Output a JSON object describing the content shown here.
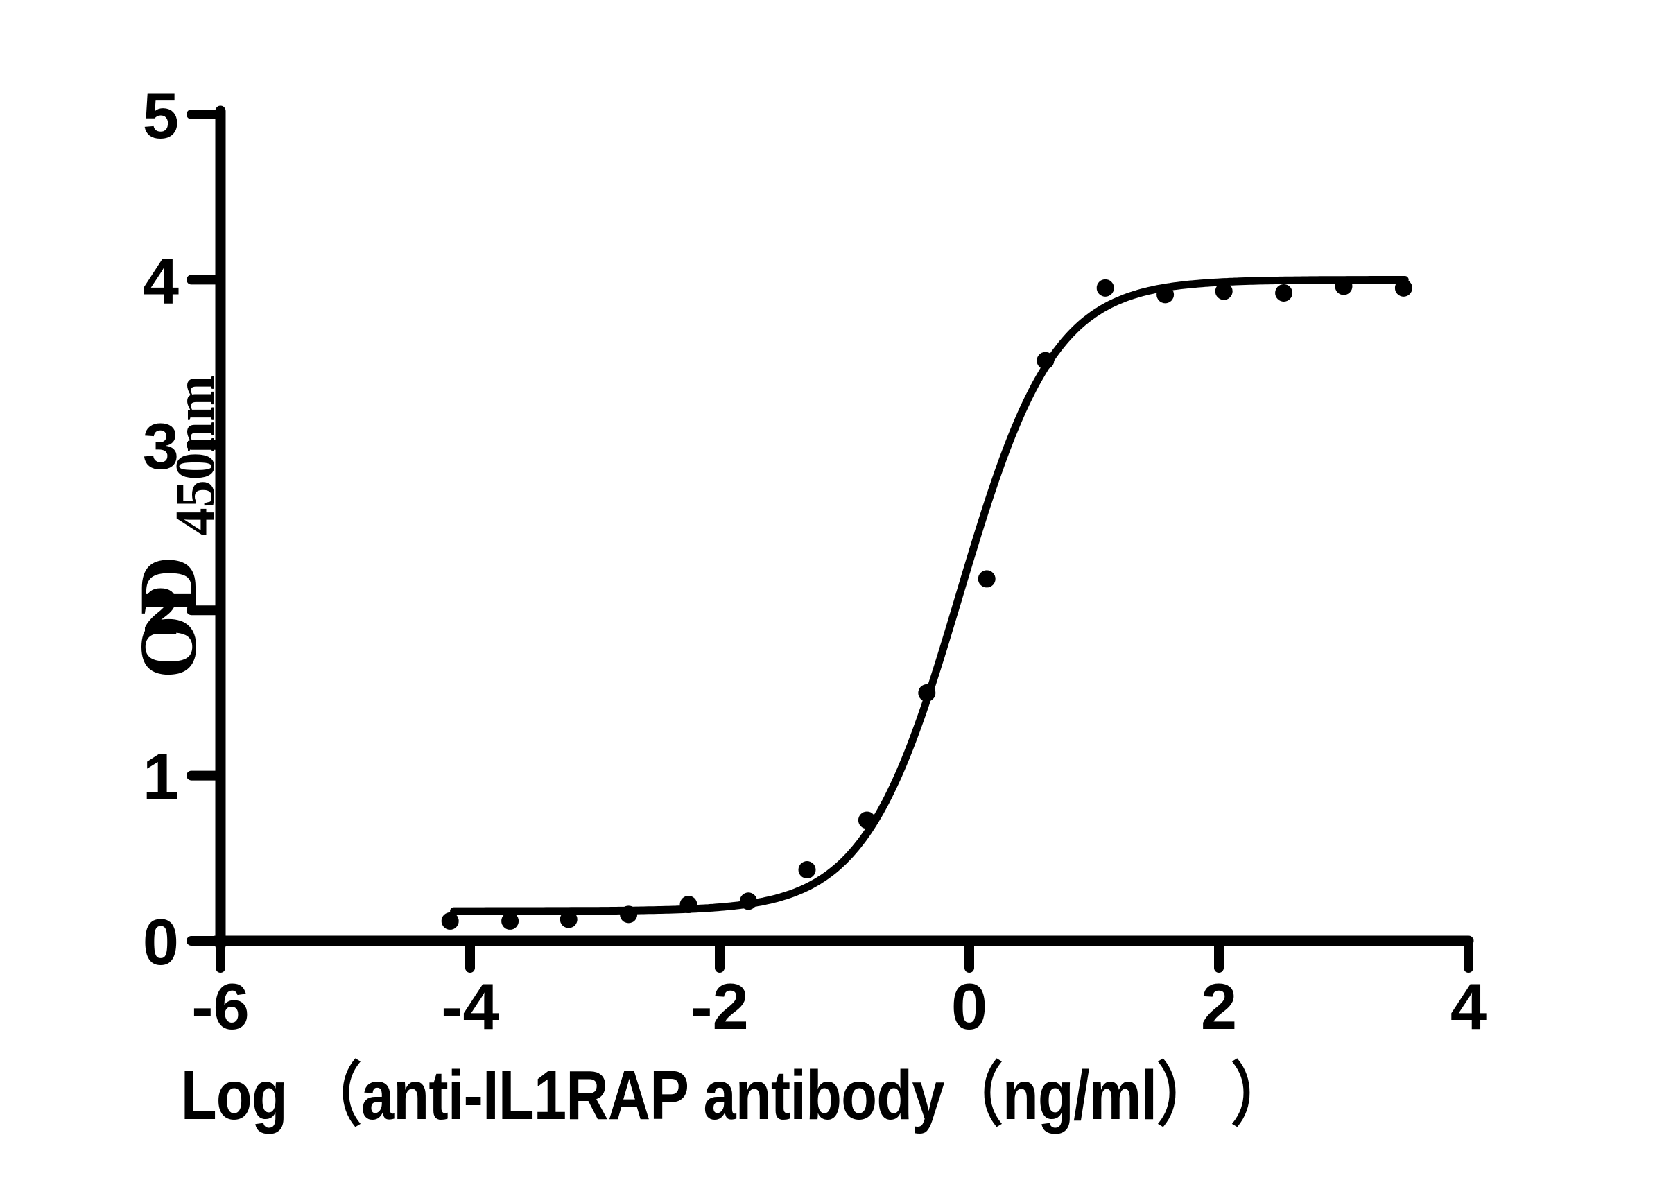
{
  "figure": {
    "background_color": "#ffffff",
    "ink_color": "#000000",
    "description": "ELISA sigmoidal binding curve, black scatter points with fitted four-parameter logistic curve on white background"
  },
  "chart_data": {
    "type": "scatter",
    "title": "",
    "xlabel": "Log （anti-IL1RAP antibody（ng/ml） ）",
    "ylabel": "OD450nm",
    "ylabel_main": "OD",
    "ylabel_sub": "450nm",
    "xlim": [
      -6,
      4
    ],
    "ylim": [
      0,
      5
    ],
    "x_ticks": [
      -6,
      -4,
      -2,
      0,
      2,
      4
    ],
    "x_tick_labels": [
      "-6",
      "-4",
      "-2",
      "0",
      "2",
      "4"
    ],
    "y_ticks": [
      0,
      1,
      2,
      3,
      4,
      5
    ],
    "y_tick_labels": [
      "0",
      "1",
      "2",
      "3",
      "4",
      "5"
    ],
    "grid": false,
    "legend": null,
    "series": [
      {
        "name": "anti-IL1RAP antibody",
        "marker": "filled-circle",
        "color": "#000000",
        "x": [
          -4.16,
          -3.68,
          -3.21,
          -2.73,
          -2.25,
          -1.77,
          -1.3,
          -0.82,
          -0.34,
          0.14,
          0.61,
          1.09,
          1.57,
          2.04,
          2.52,
          3.0,
          3.48
        ],
        "od": [
          0.12,
          0.12,
          0.13,
          0.16,
          0.22,
          0.24,
          0.43,
          0.73,
          1.5,
          2.19,
          3.51,
          3.95,
          3.91,
          3.93,
          3.92,
          3.96,
          3.95
        ]
      }
    ],
    "fit_curve": {
      "model": "four_parameter_logistic",
      "color": "#000000",
      "bottom": 0.18,
      "top": 4.0,
      "log_ec50": -0.08,
      "hill_slope": 1.15,
      "x_start": -4.13,
      "x_end": 3.5
    }
  }
}
